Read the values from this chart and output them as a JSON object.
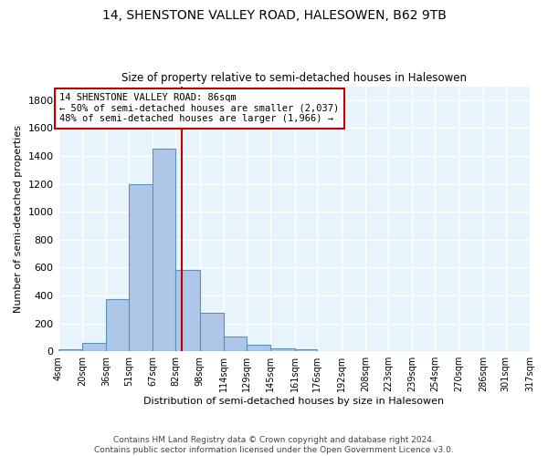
{
  "title": "14, SHENSTONE VALLEY ROAD, HALESOWEN, B62 9TB",
  "subtitle": "Size of property relative to semi-detached houses in Halesowen",
  "xlabel": "Distribution of semi-detached houses by size in Halesowen",
  "ylabel": "Number of semi-detached properties",
  "bin_edges": [
    4,
    20,
    36,
    51,
    67,
    82,
    98,
    114,
    129,
    145,
    161,
    176,
    192,
    208,
    223,
    239,
    254,
    270,
    286,
    301,
    317
  ],
  "bar_heights": [
    15,
    60,
    375,
    1200,
    1450,
    585,
    275,
    105,
    45,
    20,
    15,
    0,
    0,
    0,
    0,
    0,
    0,
    0,
    0,
    0
  ],
  "bar_color": "#aec6e8",
  "bar_edge_color": "#5a8fc0",
  "property_size": 86,
  "vline_color": "#c00000",
  "annotation_line1": "14 SHENSTONE VALLEY ROAD: 86sqm",
  "annotation_line2": "← 50% of semi-detached houses are smaller (2,037)",
  "annotation_line3": "48% of semi-detached houses are larger (1,966) →",
  "annotation_box_color": "white",
  "annotation_box_edge_color": "#c00000",
  "ylim": [
    0,
    1900
  ],
  "yticks": [
    0,
    200,
    400,
    600,
    800,
    1000,
    1200,
    1400,
    1600,
    1800
  ],
  "footer": "Contains HM Land Registry data © Crown copyright and database right 2024.\nContains public sector information licensed under the Open Government Licence v3.0.",
  "bg_color": "#e8f4fc",
  "grid_color": "white"
}
